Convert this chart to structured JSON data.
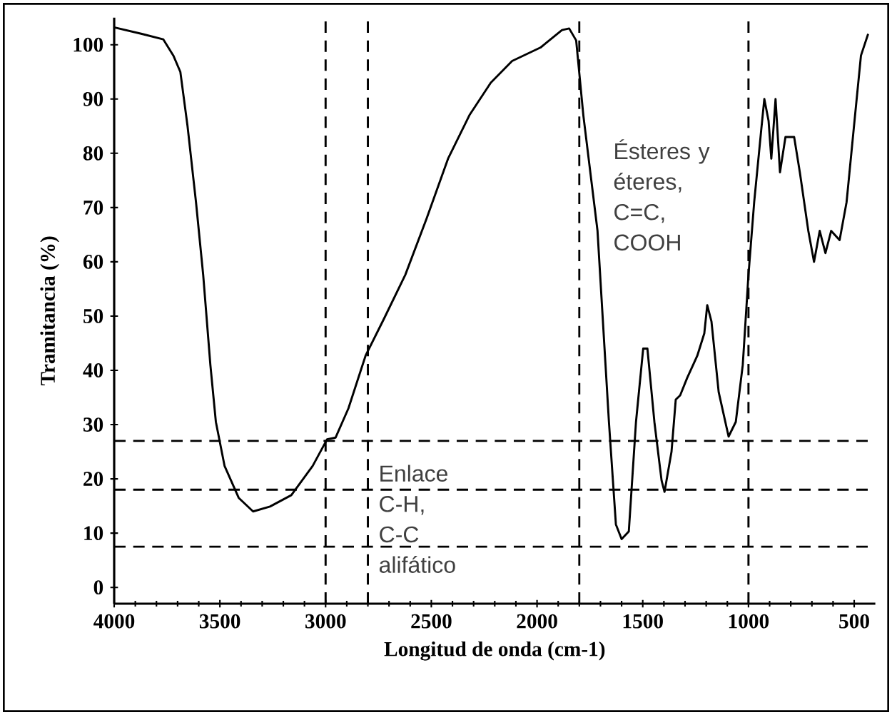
{
  "chart_data": {
    "type": "line",
    "xlabel": "Longitud de onda (cm-1)",
    "ylabel": "Tramitancia (%)",
    "annotations": [
      "Ésteres y éteres, C=C, COOH",
      "Enlace C-H, C-C alifático"
    ],
    "xlim": [
      4000,
      400
    ],
    "xticks": [
      4000,
      3500,
      3000,
      2500,
      2000,
      1500,
      1000,
      500
    ],
    "ylim": [
      -3,
      105
    ],
    "yticks": [
      0,
      10,
      20,
      30,
      40,
      50,
      60,
      70,
      80,
      90,
      100
    ],
    "ref_lines": [
      {
        "axis": "x",
        "value": 3000,
        "color": "#000000",
        "line_style": "dashed"
      },
      {
        "axis": "x",
        "value": 2800,
        "color": "#000000",
        "line_style": "dashed"
      },
      {
        "axis": "x",
        "value": 1800,
        "color": "#000000",
        "line_style": "dashed"
      },
      {
        "axis": "x",
        "value": 1000,
        "color": "#000000",
        "line_style": "dashed"
      },
      {
        "axis": "y",
        "value": 27,
        "color": "#000000",
        "line_style": "dashed"
      },
      {
        "axis": "y",
        "value": 18,
        "color": "#000000",
        "line_style": "dashed"
      },
      {
        "axis": "y",
        "value": 7.5,
        "color": "#000000",
        "line_style": "dashed"
      }
    ],
    "series": [
      {
        "color": "#000000",
        "x": [
          4000,
          3869,
          3768,
          3720,
          3687,
          3653,
          3613,
          3579,
          3545,
          3519,
          3478,
          3411,
          3343,
          3263,
          3162,
          3061,
          2993,
          2953,
          2892,
          2811,
          2724,
          2623,
          2522,
          2421,
          2320,
          2219,
          2118,
          1983,
          1882,
          1848,
          1815,
          1781,
          1714,
          1660,
          1627,
          1600,
          1566,
          1532,
          1498,
          1478,
          1445,
          1411,
          1397,
          1364,
          1344,
          1323,
          1290,
          1242,
          1209,
          1195,
          1175,
          1141,
          1094,
          1060,
          1027,
          1000,
          973,
          939,
          925,
          905,
          892,
          872,
          851,
          825,
          784,
          757,
          717,
          690,
          663,
          636,
          609,
          569,
          536,
          502,
          468,
          434
        ],
        "values": [
          103.2,
          102,
          101,
          98,
          95,
          85,
          71,
          57.6,
          41,
          30.5,
          22.4,
          16.5,
          14,
          14.9,
          17,
          22.4,
          27.3,
          27.6,
          33,
          42.7,
          49.5,
          57.6,
          68,
          79,
          87,
          93,
          97,
          99.5,
          102.7,
          103,
          100.8,
          87,
          65.7,
          30.5,
          11.6,
          8.9,
          10.3,
          30.5,
          44,
          44,
          30.5,
          19.7,
          17.6,
          25,
          34.6,
          35.4,
          38.6,
          42.7,
          46.8,
          52,
          49,
          36,
          27.8,
          30.5,
          41,
          57.6,
          71,
          84.6,
          90,
          86,
          79,
          90,
          76.5,
          83,
          83,
          76.5,
          65.7,
          60,
          65.7,
          61.6,
          65.7,
          64,
          71,
          84.6,
          98,
          102
        ]
      }
    ]
  }
}
